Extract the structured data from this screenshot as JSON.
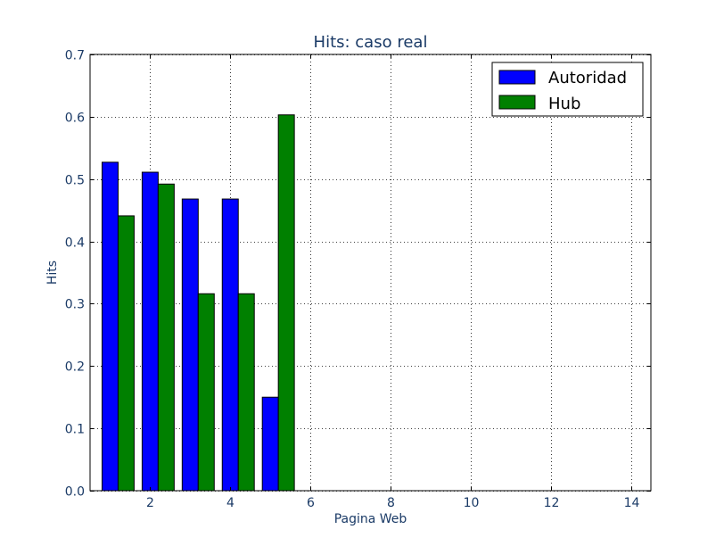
{
  "chart_data": {
    "type": "bar",
    "title": "Hits: caso real",
    "xlabel": "Pagina Web",
    "ylabel": "Hits",
    "xlim": [
      0.5,
      14.5
    ],
    "ylim": [
      0,
      0.7
    ],
    "x_ticks": [
      2,
      4,
      6,
      8,
      10,
      12,
      14
    ],
    "y_ticks": [
      0.0,
      0.1,
      0.2,
      0.3,
      0.4,
      0.5,
      0.6,
      0.7
    ],
    "grid": true,
    "legend_position": "top-right",
    "bar_width": 0.4,
    "x": [
      1,
      2,
      3,
      4,
      5,
      6,
      7,
      8,
      9,
      10,
      11,
      12,
      13,
      14
    ],
    "series": [
      {
        "name": "Autoridad",
        "color": "#0000ff",
        "offset": 0.0,
        "values": [
          0.527,
          0.511,
          0.468,
          0.468,
          0.15,
          0,
          0,
          0,
          0,
          0,
          0,
          0,
          0,
          0
        ]
      },
      {
        "name": "Hub",
        "color": "#008000",
        "offset": 0.4,
        "values": [
          0.441,
          0.492,
          0.316,
          0.316,
          0.603,
          0,
          0,
          0,
          0,
          0,
          0,
          0,
          0,
          0
        ]
      }
    ]
  }
}
